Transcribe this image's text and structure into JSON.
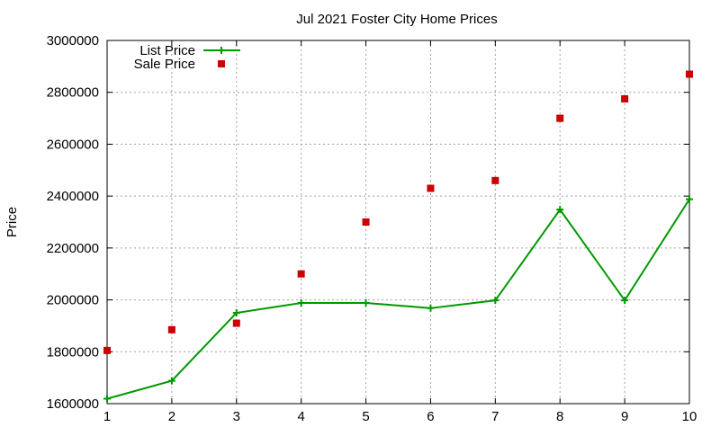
{
  "chart_data": {
    "type": "line",
    "title": "Jul 2021 Foster City Home Prices",
    "xlabel": "",
    "ylabel": "Price",
    "x": [
      1,
      2,
      3,
      4,
      5,
      6,
      7,
      8,
      9,
      10
    ],
    "xlim": [
      1,
      10
    ],
    "ylim": [
      1600000,
      3000000
    ],
    "xticks": [
      "1",
      "2",
      "3",
      "4",
      "5",
      "6",
      "7",
      "8",
      "9",
      "10"
    ],
    "yticks": [
      "1600000",
      "1800000",
      "2000000",
      "2200000",
      "2400000",
      "2600000",
      "2800000",
      "3000000"
    ],
    "grid": true,
    "legend_position": "top-left",
    "series": [
      {
        "name": "List Price",
        "style": "line-with-plus-markers",
        "color": "#009900",
        "values": [
          1619000,
          1688000,
          1950000,
          1988000,
          1988000,
          1968000,
          1998000,
          2348000,
          1998000,
          2388000
        ]
      },
      {
        "name": "Sale Price",
        "style": "square-markers",
        "color": "#cc0000",
        "values": [
          1805000,
          1885000,
          1910000,
          2100000,
          2300000,
          2430000,
          2460000,
          2700000,
          2775000,
          2870000
        ]
      }
    ]
  }
}
